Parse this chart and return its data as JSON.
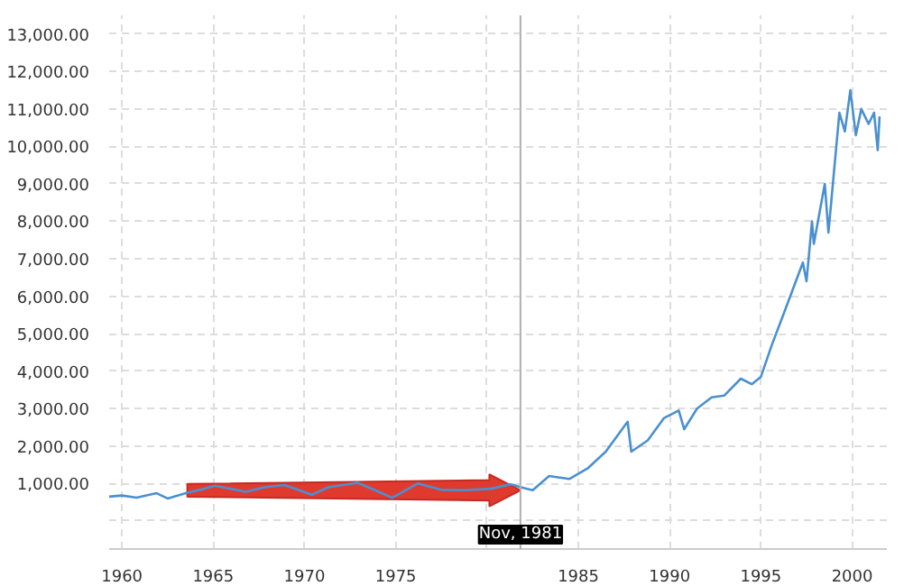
{
  "chart_data": {
    "type": "line",
    "x": [
      1959.3,
      1960,
      1960.8,
      1961.9,
      1962.5,
      1963.5,
      1964.5,
      1965.1,
      1966.8,
      1967.8,
      1968.9,
      1970.4,
      1971.3,
      1972.9,
      1973.5,
      1974.8,
      1976.2,
      1977.5,
      1978.8,
      1980.2,
      1981.3,
      1982.0,
      1982.5,
      1983.4,
      1984.5,
      1985.5,
      1986.5,
      1987.7,
      1987.9,
      1988.8,
      1989.7,
      1990.5,
      1990.8,
      1991.5,
      1992.3,
      1993.0,
      1993.9,
      1994.5,
      1995.0,
      1995.6,
      1996.3,
      1997.3,
      1997.5,
      1997.8,
      1997.9,
      1998.5,
      1998.7,
      1999.0,
      1999.3,
      1999.6,
      1999.9,
      2000.2,
      2000.5,
      2000.9,
      2001.2,
      2001.4,
      2001.5
    ],
    "series": [
      {
        "color": "#4a90d0",
        "values": [
          650,
          680,
          620,
          740,
          600,
          740,
          860,
          940,
          780,
          900,
          960,
          700,
          900,
          1020,
          900,
          620,
          1000,
          830,
          820,
          860,
          980,
          880,
          820,
          1200,
          1120,
          1400,
          1850,
          2650,
          1850,
          2150,
          2750,
          2950,
          2450,
          3000,
          3300,
          3350,
          3800,
          3650,
          3850,
          4700,
          5600,
          6900,
          6400,
          8000,
          7400,
          9000,
          7700,
          9300,
          10900,
          10400,
          11500,
          10300,
          11000,
          10600,
          10900,
          9900,
          10800
        ]
      }
    ],
    "xlim": [
      1959.3,
      2001.9
    ],
    "xticks": [
      1960,
      1965,
      1970,
      1975,
      {
        "value": 1980,
        "label": null
      },
      1985,
      1990,
      1995,
      2000
    ],
    "ylim": [
      -750,
      13500
    ],
    "yticks": [
      {
        "value": 0,
        "label": null
      },
      {
        "value": 1000,
        "label": "1,000.00"
      },
      {
        "value": 2000,
        "label": "2,000.00"
      },
      {
        "value": 3000,
        "label": "3,000.00"
      },
      {
        "value": 4000,
        "label": "4,000.00"
      },
      {
        "value": 5000,
        "label": "5,000.00"
      },
      {
        "value": 6000,
        "label": "6,000.00"
      },
      {
        "value": 7000,
        "label": "7,000.00"
      },
      {
        "value": 8000,
        "label": "8,000.00"
      },
      {
        "value": 9000,
        "label": "9,000.00"
      },
      {
        "value": 10000,
        "label": "10,000.00"
      },
      {
        "value": 11000,
        "label": "11,000.00"
      },
      {
        "value": 12000,
        "label": "12,000.00"
      },
      {
        "value": 13000,
        "label": "13,000.00"
      }
    ],
    "grid": true,
    "ref_lines": [
      {
        "axis": "x",
        "value": 1981.83,
        "label": "Nov, 1981",
        "color": "#b0b0b0"
      }
    ]
  }
}
